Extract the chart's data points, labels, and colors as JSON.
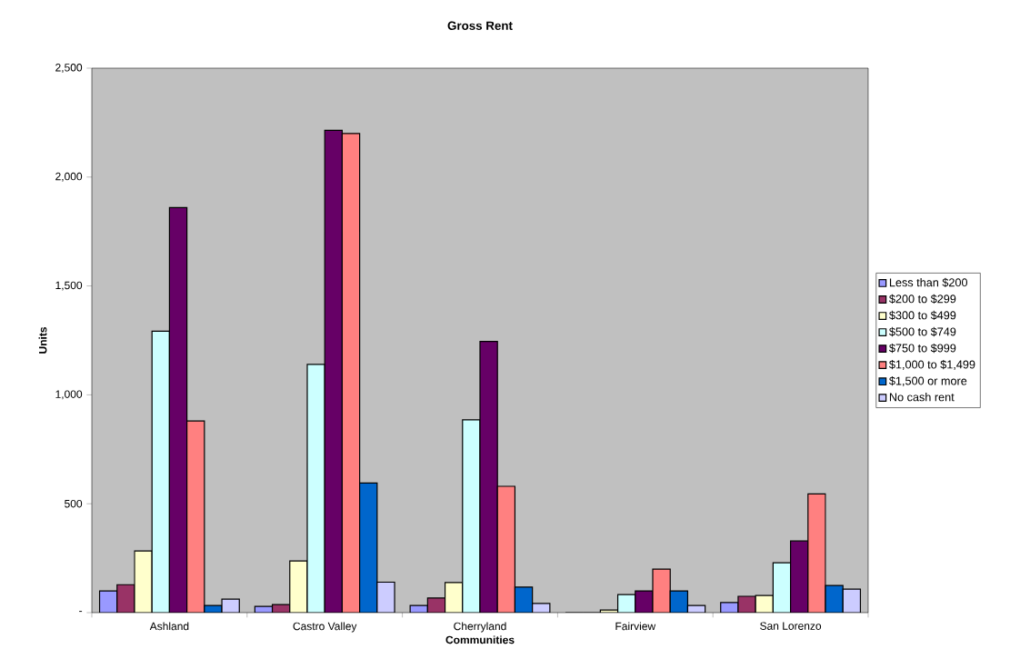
{
  "chart_data": {
    "type": "bar",
    "title": "Gross Rent",
    "xlabel": "Communities",
    "ylabel": "Units",
    "categories": [
      "Ashland",
      "Castro Valley",
      "Cherryland",
      "Fairview",
      "San Lorenzo"
    ],
    "series": [
      {
        "name": "Less than $200",
        "color": "#9999ff",
        "values": [
          100,
          29,
          33,
          0,
          46
        ]
      },
      {
        "name": "$200 to $299",
        "color": "#993366",
        "values": [
          129,
          37,
          67,
          0,
          75
        ]
      },
      {
        "name": "$300 to $499",
        "color": "#ffffcc",
        "values": [
          283,
          237,
          138,
          12,
          79
        ]
      },
      {
        "name": "$500 to $749",
        "color": "#ccffff",
        "values": [
          1292,
          1140,
          885,
          83,
          229
        ]
      },
      {
        "name": "$750 to $999",
        "color": "#660066",
        "values": [
          1860,
          2215,
          1245,
          100,
          329
        ]
      },
      {
        "name": "$1,000 to $1,499",
        "color": "#ff8080",
        "values": [
          880,
          2200,
          580,
          200,
          545
        ]
      },
      {
        "name": "$1,500 or more",
        "color": "#0066cc",
        "values": [
          33,
          595,
          117,
          100,
          125
        ]
      },
      {
        "name": "No cash rent",
        "color": "#ccccff",
        "values": [
          62,
          140,
          42,
          33,
          108
        ]
      }
    ],
    "ylim": [
      0,
      2500
    ],
    "yticks": [
      {
        "value": 0,
        "label": "-"
      },
      {
        "value": 500,
        "label": "500"
      },
      {
        "value": 1000,
        "label": "1,000"
      },
      {
        "value": 1500,
        "label": "1,500"
      },
      {
        "value": 2000,
        "label": "2,000"
      },
      {
        "value": 2500,
        "label": "2,500"
      }
    ],
    "legend": "right",
    "grid": false
  }
}
